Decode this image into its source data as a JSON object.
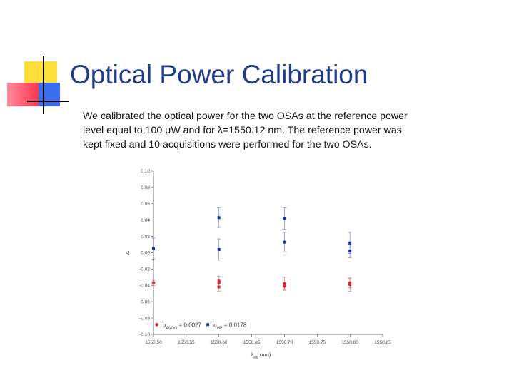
{
  "slide": {
    "title": "Optical Power Calibration",
    "paragraph_lines": [
      "We calibrated the optical power for the two OSAs at the reference power",
      "level equal to 100 μW and for λ=1550.12 nm. The reference power was",
      "kept fixed and 10 acquisitions were performed for the two OSAs."
    ]
  },
  "colors": {
    "title": "#1f3b8a",
    "series_red": "#e0242c",
    "series_blue": "#1a2fb8",
    "deco_yellow": "#ffde3a",
    "deco_red": "#ff3650",
    "deco_blue": "#3a6cf0"
  },
  "chart_data": {
    "type": "scatter",
    "xlabel": "λ_ref (nm)",
    "ylabel": "Δ",
    "xlim": [
      1550.5,
      1550.85
    ],
    "ylim": [
      -0.1,
      0.1
    ],
    "x_ticks": [
      "1550.50",
      "1550.55",
      "1550.60",
      "1550.65",
      "1550.70",
      "1550.75",
      "1550.80",
      "1550.85"
    ],
    "x_tick_values": [
      1550.5,
      1550.55,
      1550.6,
      1550.65,
      1550.7,
      1550.75,
      1550.8,
      1550.85
    ],
    "y_ticks": [
      "0.10",
      "0.08",
      "0.06",
      "0.04",
      "0.02",
      "0.00",
      "-0.02",
      "-0.04",
      "-0.06",
      "-0.08",
      "-0.10"
    ],
    "y_tick_values": [
      0.1,
      0.08,
      0.06,
      0.04,
      0.02,
      0.0,
      -0.02,
      -0.04,
      -0.06,
      -0.08,
      -0.1
    ],
    "grid": false,
    "legend_position": "bottom",
    "series": [
      {
        "label": "σ_ANDO = 0.0027",
        "color": "#e0242c",
        "marker": "circle",
        "points": [
          {
            "x": 1550.5,
            "y": -0.037,
            "err": 0.003
          },
          {
            "x": 1550.6,
            "y": -0.035,
            "err": 0.006
          },
          {
            "x": 1550.6,
            "y": -0.037,
            "err": 0.004
          },
          {
            "x": 1550.6,
            "y": -0.042,
            "err": 0.005
          },
          {
            "x": 1550.7,
            "y": -0.038,
            "err": 0.008
          },
          {
            "x": 1550.7,
            "y": -0.041,
            "err": 0.004
          },
          {
            "x": 1550.8,
            "y": -0.037,
            "err": 0.006
          },
          {
            "x": 1550.8,
            "y": -0.039,
            "err": 0.008
          }
        ]
      },
      {
        "label": "σ_HP = 0.0178",
        "color": "#1a2fb8",
        "marker": "square",
        "points": [
          {
            "x": 1550.5,
            "y": 0.005,
            "err": 0.013
          },
          {
            "x": 1550.6,
            "y": 0.043,
            "err": 0.012
          },
          {
            "x": 1550.6,
            "y": 0.004,
            "err": 0.013
          },
          {
            "x": 1550.7,
            "y": 0.042,
            "err": 0.013
          },
          {
            "x": 1550.7,
            "y": 0.013,
            "err": 0.012
          },
          {
            "x": 1550.8,
            "y": 0.012,
            "err": 0.013
          },
          {
            "x": 1550.8,
            "y": 0.002,
            "err": 0.008
          }
        ]
      }
    ]
  }
}
